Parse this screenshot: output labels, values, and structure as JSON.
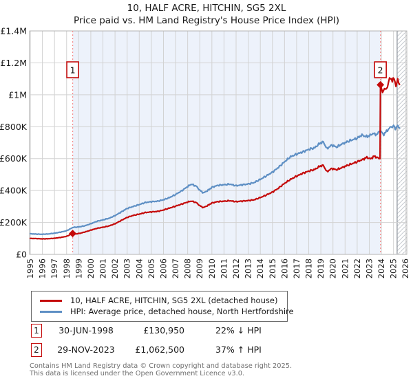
{
  "title": {
    "line1": "10, HALF ACRE, HITCHIN, SG5 2XL",
    "line2": "Price paid vs. HM Land Registry's House Price Index (HPI)"
  },
  "colors": {
    "property_red": "#c40a0a",
    "hpi_blue": "#5e8fc4",
    "shade_blue": "#edf2fb",
    "dashed_sale_line": "#f59090",
    "gridline": "#d2d2d2",
    "frame": "#b3b3b3",
    "hatch_line": "#c6cad0",
    "hatch_edge": "#999fa6"
  },
  "chart_data": {
    "type": "line",
    "title": "10, HALF ACRE, HITCHIN, SG5 2XL",
    "subtitle": "Price paid vs. HM Land Registry's House Price Index (HPI)",
    "xlabel": "",
    "ylabel": "",
    "xlim": [
      1995,
      2026.1
    ],
    "ylim": [
      0,
      1400000
    ],
    "grid": true,
    "legend_position": "below",
    "y_ticks": [
      {
        "value": 0,
        "label": "£0"
      },
      {
        "value": 200000,
        "label": "£200K"
      },
      {
        "value": 400000,
        "label": "£400K"
      },
      {
        "value": 600000,
        "label": "£600K"
      },
      {
        "value": 800000,
        "label": "£800K"
      },
      {
        "value": 1000000,
        "label": "£1M"
      },
      {
        "value": 1200000,
        "label": "£1.2M"
      },
      {
        "value": 1400000,
        "label": "£1.4M"
      }
    ],
    "x_ticks": [
      "1995",
      "1996",
      "1997",
      "1998",
      "1999",
      "2000",
      "2001",
      "2002",
      "2003",
      "2004",
      "2005",
      "2006",
      "2007",
      "2008",
      "2009",
      "2010",
      "2011",
      "2012",
      "2013",
      "2014",
      "2015",
      "2016",
      "2017",
      "2018",
      "2019",
      "2020",
      "2021",
      "2022",
      "2023",
      "2024",
      "2025",
      "2026"
    ],
    "shaded_span": [
      1998.5,
      2023.92
    ],
    "hatched_span": [
      2025.3,
      2026.1
    ],
    "sales": [
      {
        "label": "1",
        "x": 1998.5,
        "price": 130950
      },
      {
        "label": "2",
        "x": 2023.92,
        "price": 1062500
      }
    ],
    "series": [
      {
        "name": "10, HALF ACRE, HITCHIN, SG5 2XL (detached house)",
        "color": "#c40a0a",
        "points": [
          [
            1995.0,
            100000
          ],
          [
            1995.5,
            99000
          ],
          [
            1996.0,
            97000
          ],
          [
            1996.5,
            98000
          ],
          [
            1997.0,
            101000
          ],
          [
            1997.5,
            106000
          ],
          [
            1998.0,
            113000
          ],
          [
            1998.5,
            130950
          ],
          [
            1998.8,
            128000
          ],
          [
            1999.2,
            134000
          ],
          [
            1999.6,
            142000
          ],
          [
            2000.0,
            152000
          ],
          [
            2000.5,
            163000
          ],
          [
            2001.0,
            170000
          ],
          [
            2001.5,
            178000
          ],
          [
            2002.0,
            192000
          ],
          [
            2002.5,
            212000
          ],
          [
            2003.0,
            232000
          ],
          [
            2003.5,
            244000
          ],
          [
            2004.0,
            252000
          ],
          [
            2004.5,
            262000
          ],
          [
            2005.0,
            266000
          ],
          [
            2005.5,
            269000
          ],
          [
            2006.0,
            278000
          ],
          [
            2006.5,
            290000
          ],
          [
            2007.0,
            302000
          ],
          [
            2007.5,
            315000
          ],
          [
            2008.0,
            328000
          ],
          [
            2008.3,
            334000
          ],
          [
            2008.7,
            325000
          ],
          [
            2009.0,
            305000
          ],
          [
            2009.3,
            293000
          ],
          [
            2009.7,
            308000
          ],
          [
            2010.0,
            322000
          ],
          [
            2010.5,
            331000
          ],
          [
            2011.0,
            333000
          ],
          [
            2011.5,
            336000
          ],
          [
            2012.0,
            330000
          ],
          [
            2012.5,
            334000
          ],
          [
            2013.0,
            337000
          ],
          [
            2013.5,
            342000
          ],
          [
            2014.0,
            356000
          ],
          [
            2014.5,
            372000
          ],
          [
            2015.0,
            390000
          ],
          [
            2015.5,
            415000
          ],
          [
            2016.0,
            445000
          ],
          [
            2016.5,
            470000
          ],
          [
            2017.0,
            490000
          ],
          [
            2017.5,
            508000
          ],
          [
            2018.0,
            522000
          ],
          [
            2018.5,
            532000
          ],
          [
            2018.9,
            552000
          ],
          [
            2019.2,
            558000
          ],
          [
            2019.5,
            518000
          ],
          [
            2019.9,
            538000
          ],
          [
            2020.3,
            530000
          ],
          [
            2020.7,
            542000
          ],
          [
            2021.0,
            552000
          ],
          [
            2021.5,
            566000
          ],
          [
            2022.0,
            580000
          ],
          [
            2022.5,
            596000
          ],
          [
            2022.8,
            608000
          ],
          [
            2023.1,
            598000
          ],
          [
            2023.4,
            615000
          ],
          [
            2023.7,
            606000
          ],
          [
            2023.89,
            600000
          ],
          [
            2023.92,
            1062500
          ],
          [
            2024.1,
            1015000
          ],
          [
            2024.25,
            1042000
          ],
          [
            2024.4,
            1028000
          ],
          [
            2024.6,
            1088000
          ],
          [
            2024.75,
            1103000
          ],
          [
            2024.9,
            1092000
          ],
          [
            2025.05,
            1100000
          ],
          [
            2025.2,
            1058000
          ],
          [
            2025.35,
            1092000
          ],
          [
            2025.5,
            1065000
          ]
        ]
      },
      {
        "name": "HPI: Average price, detached house, North Hertfordshire",
        "color": "#5e8fc4",
        "points": [
          [
            1995.0,
            129000
          ],
          [
            1995.5,
            127000
          ],
          [
            1996.0,
            126000
          ],
          [
            1996.5,
            128000
          ],
          [
            1997.0,
            133000
          ],
          [
            1997.5,
            139000
          ],
          [
            1998.0,
            148000
          ],
          [
            1998.5,
            168000
          ],
          [
            1999.0,
            172000
          ],
          [
            1999.5,
            179000
          ],
          [
            2000.0,
            192000
          ],
          [
            2000.5,
            207000
          ],
          [
            2001.0,
            216000
          ],
          [
            2001.5,
            226000
          ],
          [
            2002.0,
            243000
          ],
          [
            2002.5,
            265000
          ],
          [
            2003.0,
            288000
          ],
          [
            2003.5,
            300000
          ],
          [
            2004.0,
            312000
          ],
          [
            2004.5,
            325000
          ],
          [
            2005.0,
            330000
          ],
          [
            2005.5,
            333000
          ],
          [
            2006.0,
            342000
          ],
          [
            2006.5,
            356000
          ],
          [
            2007.0,
            375000
          ],
          [
            2007.5,
            398000
          ],
          [
            2008.0,
            425000
          ],
          [
            2008.3,
            440000
          ],
          [
            2008.7,
            428000
          ],
          [
            2009.0,
            402000
          ],
          [
            2009.3,
            385000
          ],
          [
            2009.7,
            402000
          ],
          [
            2010.0,
            420000
          ],
          [
            2010.5,
            433000
          ],
          [
            2011.0,
            436000
          ],
          [
            2011.5,
            440000
          ],
          [
            2012.0,
            430000
          ],
          [
            2012.5,
            436000
          ],
          [
            2013.0,
            441000
          ],
          [
            2013.5,
            450000
          ],
          [
            2014.0,
            470000
          ],
          [
            2014.5,
            492000
          ],
          [
            2015.0,
            515000
          ],
          [
            2015.5,
            545000
          ],
          [
            2016.0,
            580000
          ],
          [
            2016.5,
            612000
          ],
          [
            2017.0,
            628000
          ],
          [
            2017.5,
            642000
          ],
          [
            2018.0,
            658000
          ],
          [
            2018.5,
            668000
          ],
          [
            2018.9,
            695000
          ],
          [
            2019.2,
            705000
          ],
          [
            2019.5,
            662000
          ],
          [
            2019.9,
            685000
          ],
          [
            2020.3,
            672000
          ],
          [
            2020.7,
            690000
          ],
          [
            2021.0,
            700000
          ],
          [
            2021.5,
            715000
          ],
          [
            2022.0,
            728000
          ],
          [
            2022.4,
            748000
          ],
          [
            2022.7,
            738000
          ],
          [
            2023.0,
            742000
          ],
          [
            2023.3,
            758000
          ],
          [
            2023.6,
            750000
          ],
          [
            2023.92,
            775000
          ],
          [
            2024.2,
            752000
          ],
          [
            2024.5,
            778000
          ],
          [
            2024.8,
            800000
          ],
          [
            2025.0,
            806000
          ],
          [
            2025.15,
            788000
          ],
          [
            2025.35,
            802000
          ],
          [
            2025.5,
            792000
          ]
        ]
      }
    ]
  },
  "legend": {
    "items": [
      {
        "label": "10, HALF ACRE, HITCHIN, SG5 2XL (detached house)"
      },
      {
        "label": "HPI: Average price, detached house, North Hertfordshire"
      }
    ]
  },
  "annotations": [
    {
      "num": "1",
      "date": "30-JUN-1998",
      "price": "£130,950",
      "hpi": "22% ↓ HPI"
    },
    {
      "num": "2",
      "date": "29-NOV-2023",
      "price": "£1,062,500",
      "hpi": "37% ↑ HPI"
    }
  ],
  "footer": {
    "line1": "Contains HM Land Registry data © Crown copyright and database right 2025.",
    "line2": "This data is licensed under the Open Government Licence v3.0."
  }
}
